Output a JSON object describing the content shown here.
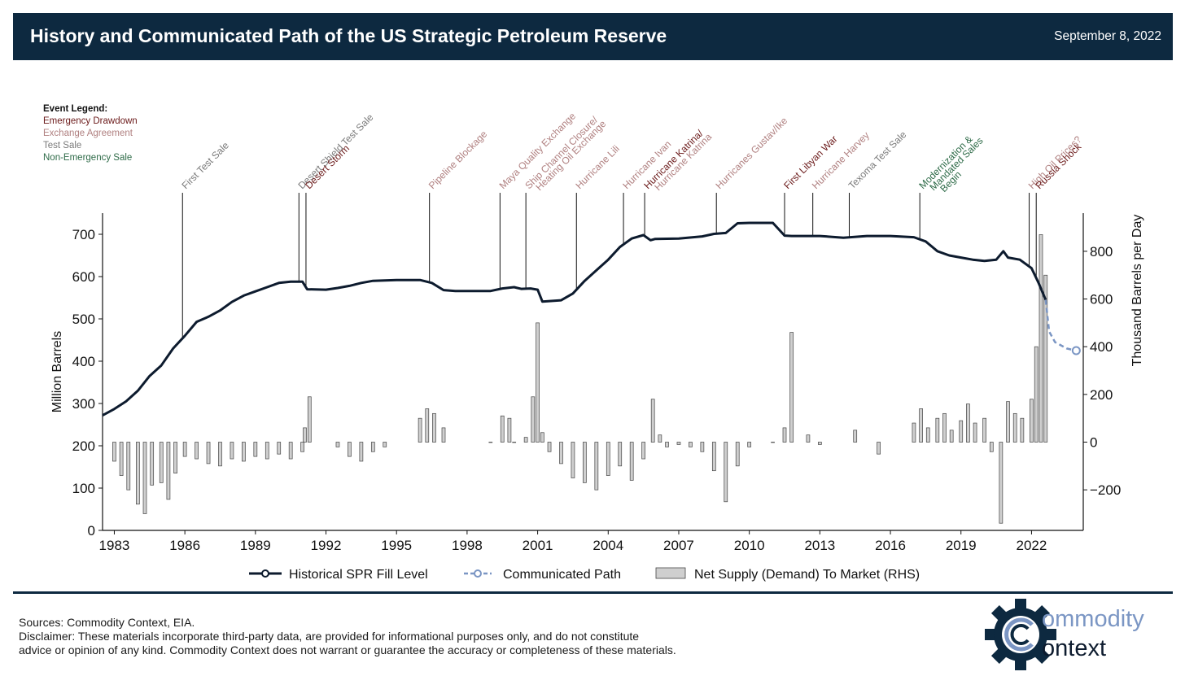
{
  "header": {
    "title": "History and Communicated Path of the US Strategic Petroleum Reserve",
    "date": "September 8, 2022"
  },
  "event_legend": {
    "heading": "Event Legend:",
    "items": [
      {
        "label": "Emergency Drawdown",
        "color": "#6b1a1a"
      },
      {
        "label": "Exchange Agreement",
        "color": "#b08080"
      },
      {
        "label": "Test Sale",
        "color": "#7a7a7a"
      },
      {
        "label": "Non-Emergency Sale",
        "color": "#2e6b48"
      }
    ]
  },
  "colors": {
    "header_bg": "#0d2940",
    "fill_line": "#0d1b2e",
    "path_line": "#7b96c4",
    "bars_fill": "#cfcfcf",
    "bars_stroke": "#444444",
    "emergency": "#6b1a1a",
    "exchange": "#b08080",
    "test": "#7a7a7a",
    "nonemergency": "#2e6b48"
  },
  "chart_data": {
    "type": "line",
    "title": "History and Communicated Path of the US Strategic Petroleum Reserve",
    "ylabel": "Million Barrels",
    "y2label": "Thousand Barrels per Day",
    "xlim": [
      1982.5,
      2024.2
    ],
    "ylim": [
      0,
      750
    ],
    "y2lim": [
      -370,
      960
    ],
    "xticks": [
      "1983",
      "1986",
      "1989",
      "1992",
      "1995",
      "1998",
      "2001",
      "2004",
      "2007",
      "2010",
      "2013",
      "2016",
      "2019",
      "2022"
    ],
    "yticks": [
      "0",
      "100",
      "200",
      "300",
      "400",
      "500",
      "600",
      "700"
    ],
    "y2ticks": [
      "−200",
      "0",
      "200",
      "400",
      "600",
      "800"
    ],
    "legend": {
      "position": "bottom",
      "entries": [
        "Historical SPR Fill Level",
        "Communicated Path",
        "Net Supply (Demand) To Market (RHS)"
      ]
    },
    "series": [
      {
        "name": "Historical SPR Fill Level",
        "style": "line",
        "x": [
          1982.5,
          1983.0,
          1983.5,
          1984.0,
          1984.5,
          1985.0,
          1985.5,
          1986.0,
          1986.5,
          1987.0,
          1987.5,
          1988.0,
          1988.5,
          1989.0,
          1989.5,
          1990.0,
          1990.5,
          1991.0,
          1991.2,
          1992.0,
          1992.5,
          1993.0,
          1993.5,
          1994.0,
          1995.0,
          1996.0,
          1996.5,
          1997.0,
          1997.5,
          1998.0,
          1999.0,
          1999.5,
          2000.0,
          2000.3,
          2000.7,
          2001.0,
          2001.2,
          2002.0,
          2002.5,
          2003.0,
          2003.5,
          2004.0,
          2004.5,
          2005.0,
          2005.5,
          2005.8,
          2006.0,
          2007.0,
          2008.0,
          2008.5,
          2009.0,
          2009.5,
          2010.0,
          2011.0,
          2011.5,
          2011.8,
          2013.0,
          2014.0,
          2015.0,
          2016.0,
          2017.0,
          2017.5,
          2018.0,
          2018.5,
          2019.0,
          2019.5,
          2020.0,
          2020.5,
          2020.8,
          2021.0,
          2021.5,
          2022.0,
          2022.3,
          2022.6
        ],
        "y": [
          272,
          287,
          305,
          330,
          365,
          390,
          430,
          460,
          493,
          505,
          520,
          540,
          555,
          565,
          575,
          585,
          588,
          588,
          570,
          569,
          573,
          578,
          585,
          590,
          592,
          592,
          585,
          568,
          566,
          566,
          566,
          572,
          575,
          571,
          572,
          569,
          541,
          544,
          560,
          590,
          615,
          640,
          670,
          690,
          698,
          686,
          689,
          690,
          695,
          701,
          703,
          726,
          727,
          727,
          697,
          696,
          696,
          692,
          696,
          696,
          693,
          683,
          660,
          650,
          645,
          640,
          637,
          640,
          660,
          645,
          640,
          620,
          585,
          545
        ]
      },
      {
        "name": "Communicated Path",
        "style": "dashed",
        "x": [
          2022.6,
          2022.75,
          2023.0,
          2023.5,
          2023.9
        ],
        "y": [
          545,
          470,
          445,
          430,
          425
        ]
      },
      {
        "name": "Net Supply (Demand) To Market (RHS)",
        "style": "bar",
        "axis": "right",
        "x": [
          1983.0,
          1983.3,
          1983.6,
          1984.0,
          1984.3,
          1984.6,
          1985.0,
          1985.3,
          1985.6,
          1986.0,
          1986.5,
          1987.0,
          1987.5,
          1988.0,
          1988.5,
          1989.0,
          1989.5,
          1990.0,
          1990.5,
          1991.0,
          1991.1,
          1991.3,
          1992.5,
          1993.0,
          1993.5,
          1994.0,
          1994.5,
          1996.0,
          1996.3,
          1996.6,
          1997.0,
          1999.0,
          1999.5,
          1999.8,
          2000.0,
          2000.5,
          2000.8,
          2001.0,
          2001.2,
          2001.5,
          2002.0,
          2002.5,
          2003.0,
          2003.5,
          2004.0,
          2004.5,
          2005.0,
          2005.5,
          2005.9,
          2006.2,
          2006.5,
          2007.0,
          2007.5,
          2008.0,
          2008.5,
          2009.0,
          2009.5,
          2010.0,
          2011.0,
          2011.5,
          2011.8,
          2012.5,
          2013.0,
          2014.5,
          2015.5,
          2017.0,
          2017.3,
          2017.6,
          2018.0,
          2018.3,
          2018.6,
          2019.0,
          2019.3,
          2019.6,
          2020.0,
          2020.3,
          2020.7,
          2021.0,
          2021.3,
          2021.6,
          2022.0,
          2022.2,
          2022.4,
          2022.6
        ],
        "y": [
          -80,
          -140,
          -200,
          -260,
          -300,
          -180,
          -170,
          -240,
          -130,
          -60,
          -70,
          -90,
          -100,
          -70,
          -80,
          -60,
          -70,
          -50,
          -70,
          -40,
          60,
          190,
          -20,
          -60,
          -80,
          -40,
          -20,
          100,
          140,
          120,
          60,
          0,
          110,
          100,
          0,
          20,
          190,
          500,
          40,
          -40,
          -90,
          -150,
          -170,
          -200,
          -140,
          -100,
          -160,
          -70,
          180,
          30,
          -20,
          -10,
          -20,
          -40,
          -120,
          -250,
          -100,
          -20,
          0,
          60,
          460,
          30,
          -10,
          50,
          -50,
          80,
          140,
          60,
          100,
          120,
          50,
          90,
          160,
          80,
          100,
          -40,
          -340,
          170,
          120,
          100,
          180,
          400,
          870,
          700
        ]
      }
    ],
    "annotations": [
      {
        "x": 1985.9,
        "label": "First Test Sale",
        "type": "test",
        "color": "#7a7a7a"
      },
      {
        "x": 1990.85,
        "label": "Desert Shield Test Sale",
        "type": "test",
        "color": "#7a7a7a"
      },
      {
        "x": 1991.15,
        "label": "Desert Storm",
        "type": "emergency",
        "color": "#6b1a1a"
      },
      {
        "x": 1996.4,
        "label": "Pipeline Blockage",
        "type": "exchange",
        "color": "#b08080"
      },
      {
        "x": 1999.4,
        "label": "Maya Quality Exchange",
        "type": "exchange",
        "color": "#b08080"
      },
      {
        "x": 2000.5,
        "label": "Ship Channel Closure/",
        "label2": "Heating Oil Exchange",
        "type": "exchange",
        "color": "#b08080"
      },
      {
        "x": 2002.65,
        "label": "Hurricane Lili",
        "type": "exchange",
        "color": "#b08080"
      },
      {
        "x": 2004.65,
        "label": "Hurricane Ivan",
        "type": "exchange",
        "color": "#b08080"
      },
      {
        "x": 2005.55,
        "label": "Hurricane Katrina/",
        "label2": "Hurricane Katrina",
        "type": "emergency",
        "color": "#6b1a1a",
        "color2": "#b08080"
      },
      {
        "x": 2008.6,
        "label": "Hurricanes Gustav/Ike",
        "type": "exchange",
        "color": "#b08080"
      },
      {
        "x": 2011.5,
        "label": "First Libyan War",
        "type": "emergency",
        "color": "#6b1a1a"
      },
      {
        "x": 2012.7,
        "label": "Hurricane Harvey",
        "type": "exchange",
        "color": "#b08080"
      },
      {
        "x": 2014.25,
        "label": "Texoma Test Sale",
        "type": "test",
        "color": "#7a7a7a"
      },
      {
        "x": 2017.25,
        "label": "Modernization &",
        "label2": "Mandated Sales",
        "label3": "Begin",
        "type": "nonemergency",
        "color": "#2e6b48"
      },
      {
        "x": 2021.9,
        "label": "High Oil Prices?",
        "type": "exchange",
        "color": "#b08080"
      },
      {
        "x": 2022.2,
        "label": "Russia Shock",
        "type": "emergency",
        "color": "#6b1a1a"
      }
    ]
  },
  "footer": {
    "sources": "Sources: Commodity Context, EIA.",
    "disclaimer_line1": "Disclaimer: These materials incorporate third-party data, are provided for informational purposes only, and do not constitute",
    "disclaimer_line2": "advice or opinion of any kind. Commodity Context does not warrant or guarantee the accuracy or completeness of these materials."
  },
  "logo": {
    "word1": "ommodity",
    "word2": "ontext",
    "color_word1": "#7b96c4",
    "color_word2": "#0d1b2e"
  }
}
